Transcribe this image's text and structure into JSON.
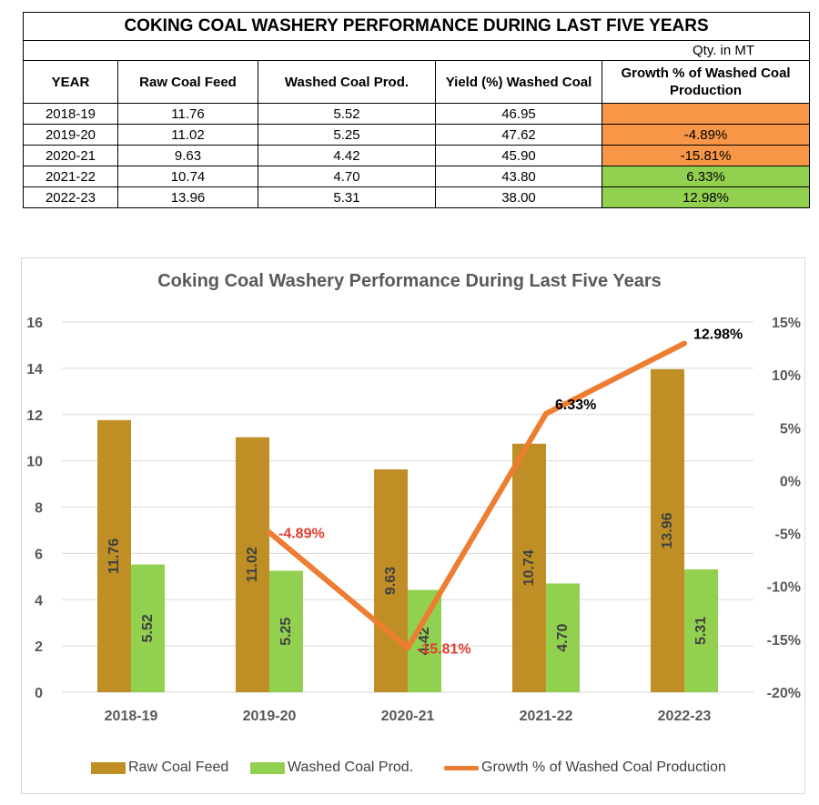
{
  "table": {
    "title": "COKING COAL WASHERY PERFORMANCE DURING LAST FIVE YEARS",
    "unit": "Qty. in MT",
    "headers": [
      "YEAR",
      "Raw Coal Feed",
      "Washed Coal Prod.",
      "Yield (%) Washed Coal",
      "Growth % of Washed Coal Production"
    ],
    "rows": [
      {
        "year": "2018-19",
        "raw": "11.76",
        "washed": "5.52",
        "yield": "46.95",
        "growth": "",
        "trend": "neg"
      },
      {
        "year": "2019-20",
        "raw": "11.02",
        "washed": "5.25",
        "yield": "47.62",
        "growth": "-4.89%",
        "trend": "neg"
      },
      {
        "year": "2020-21",
        "raw": "9.63",
        "washed": "4.42",
        "yield": "45.90",
        "growth": "-15.81%",
        "trend": "neg"
      },
      {
        "year": "2021-22",
        "raw": "10.74",
        "washed": "4.70",
        "yield": "43.80",
        "growth": "6.33%",
        "trend": "pos"
      },
      {
        "year": "2022-23",
        "raw": "13.96",
        "washed": "5.31",
        "yield": "38.00",
        "growth": "12.98%",
        "trend": "pos"
      }
    ]
  },
  "colors": {
    "raw": "#bf8f26",
    "washed": "#92d050",
    "growth_line": "#ed7d31",
    "neg_label": "#e03c31",
    "pos_label": "#000000"
  },
  "chart_data": {
    "type": "bar",
    "title": "Coking Coal Washery Performance During Last Five Years",
    "categories": [
      "2018-19",
      "2019-20",
      "2020-21",
      "2021-22",
      "2022-23"
    ],
    "series": [
      {
        "name": "Raw Coal Feed",
        "values": [
          11.76,
          11.02,
          9.63,
          10.74,
          13.96
        ],
        "labels": [
          "11.76",
          "11.02",
          "9.63",
          "10.74",
          "13.96"
        ]
      },
      {
        "name": "Washed Coal Prod.",
        "values": [
          5.52,
          5.25,
          4.42,
          4.7,
          5.31
        ],
        "labels": [
          "5.52",
          "5.25",
          "4.42",
          "4.70",
          "5.31"
        ]
      }
    ],
    "line_series": {
      "name": "Growth % of Washed Coal Production",
      "axis": "secondary",
      "values": [
        null,
        -4.89,
        -15.81,
        6.33,
        12.98
      ],
      "labels": [
        "",
        "-4.89%",
        "-15.81%",
        "6.33%",
        "12.98%"
      ]
    },
    "ylim": [
      0,
      16
    ],
    "yticks": [
      0,
      2,
      4,
      6,
      8,
      10,
      12,
      14,
      16
    ],
    "y2lim": [
      -20,
      15
    ],
    "y2ticks": [
      -20,
      -15,
      -10,
      -5,
      0,
      5,
      10,
      15
    ],
    "y2tick_labels": [
      "-20%",
      "-15%",
      "-10%",
      "-5%",
      "0%",
      "5%",
      "10%",
      "15%"
    ],
    "legend": [
      "Raw Coal Feed",
      "Washed Coal Prod.",
      "Growth % of Washed Coal Production"
    ],
    "legend_position": "bottom"
  }
}
